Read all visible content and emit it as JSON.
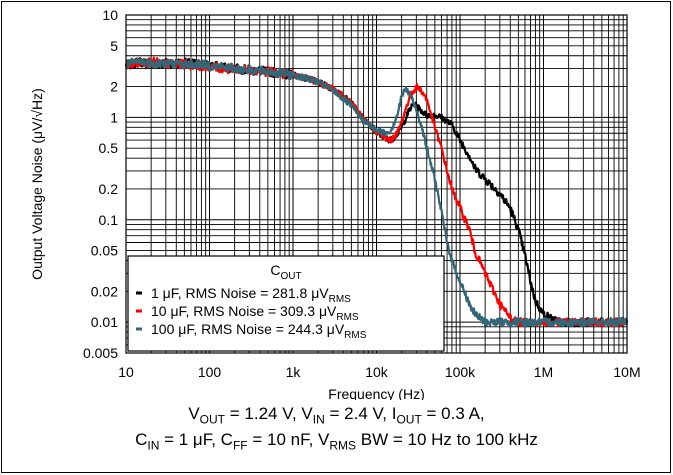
{
  "chart_data": {
    "type": "line",
    "x_scale": "log",
    "y_scale": "log",
    "xlabel": "Frequency (Hz)",
    "ylabel": "Output Voltage Noise (μV/√Hz)",
    "xlim": [
      10,
      10000000
    ],
    "ylim": [
      0.005,
      10
    ],
    "grid": true,
    "x_ticks": [
      {
        "value": 10,
        "label": "10"
      },
      {
        "value": 100,
        "label": "100"
      },
      {
        "value": 1000,
        "label": "1k"
      },
      {
        "value": 10000,
        "label": "10k"
      },
      {
        "value": 100000,
        "label": "100k"
      },
      {
        "value": 1000000,
        "label": "1M"
      },
      {
        "value": 10000000,
        "label": "10M"
      }
    ],
    "y_ticks": [
      {
        "value": 0.005,
        "label": "0.005"
      },
      {
        "value": 0.01,
        "label": "0.01"
      },
      {
        "value": 0.02,
        "label": "0.02"
      },
      {
        "value": 0.05,
        "label": "0.05"
      },
      {
        "value": 0.1,
        "label": "0.1"
      },
      {
        "value": 0.2,
        "label": "0.2"
      },
      {
        "value": 0.5,
        "label": "0.5"
      },
      {
        "value": 1,
        "label": "1"
      },
      {
        "value": 2,
        "label": "2"
      },
      {
        "value": 5,
        "label": "5"
      },
      {
        "value": 10,
        "label": "10"
      }
    ],
    "legend": {
      "title_main": "C",
      "title_sub": "OUT",
      "placement": "bottom-left"
    },
    "series": [
      {
        "label_main": "1 μF, RMS Noise = 281.8 μV",
        "label_sub": "RMS",
        "color": "#000000",
        "points": [
          [
            10,
            3.2
          ],
          [
            15,
            3.5
          ],
          [
            20,
            3.3
          ],
          [
            30,
            3.4
          ],
          [
            50,
            3.4
          ],
          [
            80,
            3.3
          ],
          [
            100,
            3.2
          ],
          [
            150,
            3.1
          ],
          [
            200,
            3.0
          ],
          [
            300,
            2.9
          ],
          [
            500,
            2.8
          ],
          [
            700,
            2.7
          ],
          [
            1000,
            2.6
          ],
          [
            1500,
            2.4
          ],
          [
            2000,
            2.2
          ],
          [
            3000,
            1.9
          ],
          [
            5000,
            1.4
          ],
          [
            7000,
            0.95
          ],
          [
            10000,
            0.72
          ],
          [
            13000,
            0.62
          ],
          [
            15000,
            0.6
          ],
          [
            18000,
            0.7
          ],
          [
            20000,
            0.8
          ],
          [
            25000,
            1.2
          ],
          [
            28000,
            1.35
          ],
          [
            30000,
            1.3
          ],
          [
            35000,
            1.15
          ],
          [
            40000,
            1.05
          ],
          [
            50000,
            1.05
          ],
          [
            60000,
            1.0
          ],
          [
            80000,
            0.85
          ],
          [
            100000,
            0.6
          ],
          [
            130000,
            0.42
          ],
          [
            150000,
            0.32
          ],
          [
            200000,
            0.25
          ],
          [
            300000,
            0.18
          ],
          [
            400000,
            0.13
          ],
          [
            500000,
            0.08
          ],
          [
            600000,
            0.045
          ],
          [
            700000,
            0.025
          ],
          [
            800000,
            0.016
          ],
          [
            1000000,
            0.012
          ],
          [
            1500000,
            0.01
          ],
          [
            2000000,
            0.01
          ],
          [
            3000000,
            0.01
          ],
          [
            5000000,
            0.01
          ],
          [
            10000000,
            0.01
          ]
        ]
      },
      {
        "label_main": "10 μF, RMS Noise = 309.3 μV",
        "label_sub": "RMS",
        "color": "#ff0000",
        "points": [
          [
            10,
            3.3
          ],
          [
            15,
            3.4
          ],
          [
            20,
            3.5
          ],
          [
            30,
            3.3
          ],
          [
            50,
            3.3
          ],
          [
            80,
            3.2
          ],
          [
            100,
            3.1
          ],
          [
            150,
            3.0
          ],
          [
            200,
            3.0
          ],
          [
            300,
            2.9
          ],
          [
            500,
            2.8
          ],
          [
            700,
            2.7
          ],
          [
            1000,
            2.6
          ],
          [
            1500,
            2.4
          ],
          [
            2000,
            2.2
          ],
          [
            3000,
            1.9
          ],
          [
            5000,
            1.4
          ],
          [
            7000,
            0.95
          ],
          [
            10000,
            0.72
          ],
          [
            13000,
            0.62
          ],
          [
            15000,
            0.6
          ],
          [
            18000,
            0.72
          ],
          [
            20000,
            0.9
          ],
          [
            25000,
            1.6
          ],
          [
            30000,
            2.0
          ],
          [
            35000,
            1.8
          ],
          [
            40000,
            1.5
          ],
          [
            50000,
            0.8
          ],
          [
            60000,
            0.5
          ],
          [
            70000,
            0.3
          ],
          [
            80000,
            0.2
          ],
          [
            100000,
            0.13
          ],
          [
            130000,
            0.08
          ],
          [
            150000,
            0.05
          ],
          [
            200000,
            0.03
          ],
          [
            300000,
            0.015
          ],
          [
            400000,
            0.011
          ],
          [
            500000,
            0.01
          ],
          [
            1000000,
            0.01
          ],
          [
            2000000,
            0.01
          ],
          [
            5000000,
            0.01
          ],
          [
            10000000,
            0.01
          ]
        ]
      },
      {
        "label_main": "100 μF, RMS Noise = 244.3  μV",
        "label_sub": "RMS",
        "color": "#336677",
        "points": [
          [
            10,
            3.3
          ],
          [
            15,
            3.5
          ],
          [
            20,
            3.4
          ],
          [
            30,
            3.4
          ],
          [
            50,
            3.3
          ],
          [
            80,
            3.3
          ],
          [
            100,
            3.2
          ],
          [
            150,
            3.1
          ],
          [
            200,
            3.0
          ],
          [
            300,
            2.9
          ],
          [
            500,
            2.8
          ],
          [
            700,
            2.7
          ],
          [
            1000,
            2.6
          ],
          [
            1500,
            2.4
          ],
          [
            2000,
            2.2
          ],
          [
            3000,
            1.85
          ],
          [
            5000,
            1.3
          ],
          [
            7000,
            0.92
          ],
          [
            10000,
            0.75
          ],
          [
            13000,
            0.7
          ],
          [
            15000,
            0.75
          ],
          [
            18000,
            1.1
          ],
          [
            20000,
            1.6
          ],
          [
            22000,
            1.9
          ],
          [
            25000,
            1.7
          ],
          [
            30000,
            1.2
          ],
          [
            35000,
            0.8
          ],
          [
            40000,
            0.5
          ],
          [
            50000,
            0.25
          ],
          [
            60000,
            0.12
          ],
          [
            70000,
            0.06
          ],
          [
            80000,
            0.04
          ],
          [
            100000,
            0.025
          ],
          [
            130000,
            0.015
          ],
          [
            150000,
            0.012
          ],
          [
            200000,
            0.01
          ],
          [
            500000,
            0.01
          ],
          [
            1000000,
            0.01
          ],
          [
            2000000,
            0.01
          ],
          [
            5000000,
            0.01
          ],
          [
            10000000,
            0.01
          ]
        ]
      }
    ]
  },
  "caption": {
    "line1": [
      {
        "t": "V"
      },
      {
        "t": "OUT",
        "sub": true
      },
      {
        "t": " = 1.24 V, V"
      },
      {
        "t": "IN",
        "sub": true
      },
      {
        "t": " = 2.4 V, I"
      },
      {
        "t": "OUT",
        "sub": true
      },
      {
        "t": " = 0.3 A,"
      }
    ],
    "line2": [
      {
        "t": "C"
      },
      {
        "t": "IN",
        "sub": true
      },
      {
        "t": " = 1 μF, C"
      },
      {
        "t": "FF",
        "sub": true
      },
      {
        "t": " = 10 nF, V"
      },
      {
        "t": "RMS",
        "sub": true
      },
      {
        "t": " BW = 10 Hz to 100 kHz"
      }
    ]
  }
}
